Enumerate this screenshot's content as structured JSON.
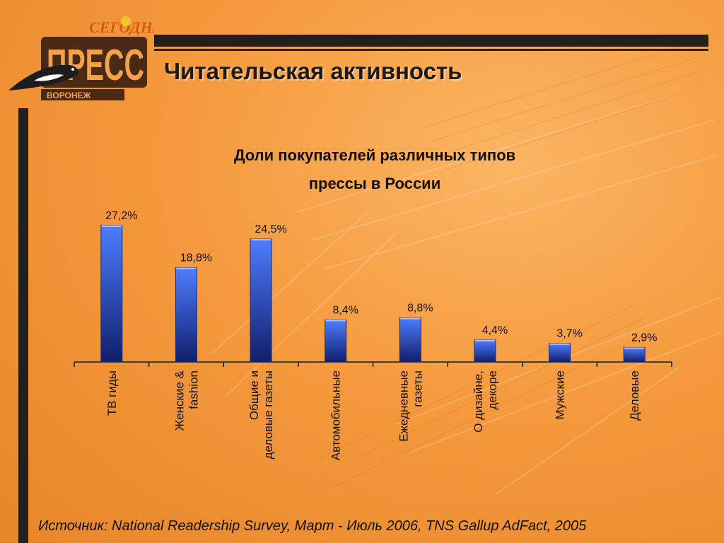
{
  "slide": {
    "title": "Читательская активность",
    "source": "Источник: National Readership Survey, Март - Июль 2006, TNS Gallup AdFact, 2005"
  },
  "logo": {
    "top_text": "СЕГОДНЯ",
    "main_text": "ПРЕСС",
    "city_text": "ВОРОНЕЖ"
  },
  "colors": {
    "background": "#f59a3e",
    "bar_top": "#4d7dff",
    "bar_bottom": "#101f6a",
    "dark": "#231f1c"
  },
  "chart_data": {
    "type": "bar",
    "title_lines": [
      "Доли покупателей различных типов",
      "прессы в России"
    ],
    "categories": [
      [
        "ТВ гиды"
      ],
      [
        "Женские &",
        "fashion"
      ],
      [
        "Общие и",
        "деловые газеты"
      ],
      [
        "Автомобильные"
      ],
      [
        "Ежедневные",
        "газеты"
      ],
      [
        "О дизайне,",
        "декоре"
      ],
      [
        "Мужские"
      ],
      [
        "Деловые"
      ]
    ],
    "values": [
      27.2,
      18.8,
      24.5,
      8.4,
      8.8,
      4.4,
      3.7,
      2.9
    ],
    "value_labels": [
      "27,2%",
      "18,8%",
      "24,5%",
      "8,4%",
      "8,8%",
      "4,4%",
      "3,7%",
      "2,9%"
    ],
    "ylim": [
      0,
      30
    ],
    "grid": false,
    "legend": "none"
  }
}
